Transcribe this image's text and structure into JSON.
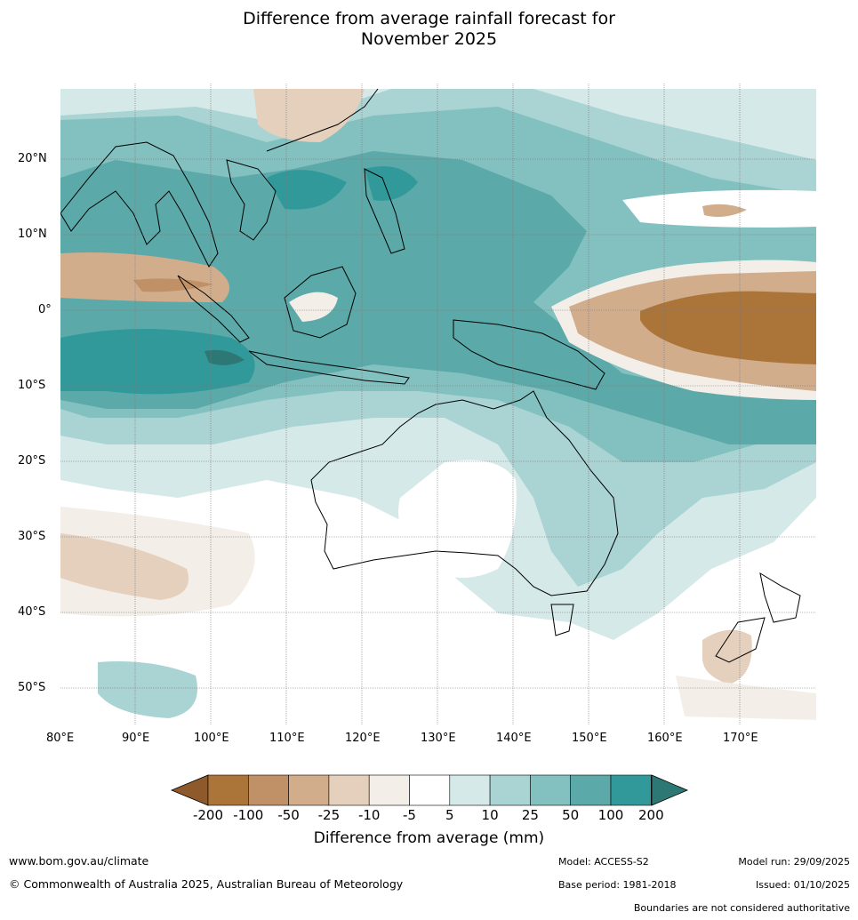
{
  "title": {
    "line1": "Difference from average rainfall forecast for",
    "line2": "November 2025"
  },
  "map": {
    "region": "Indo-Pacific and Australia",
    "lat_labels": [
      "20°N",
      "10°N",
      "0°",
      "10°S",
      "20°S",
      "30°S",
      "40°S",
      "50°S"
    ],
    "lon_labels": [
      "80°E",
      "90°E",
      "100°E",
      "110°E",
      "120°E",
      "130°E",
      "140°E",
      "150°E",
      "160°E",
      "170°E"
    ]
  },
  "colorbar": {
    "ticks": [
      "-200",
      "-100",
      "-50",
      "-25",
      "-10",
      "-5",
      "5",
      "10",
      "25",
      "50",
      "100",
      "200"
    ],
    "colors": [
      "#ab7439",
      "#c09166",
      "#d1ad8c",
      "#e4d0bd",
      "#f3eee8",
      "#ffffff",
      "#d4e9e8",
      "#a9d4d3",
      "#82c1c0",
      "#5ba9a9",
      "#32999a"
    ],
    "low_extend_color": "#8e5a2c",
    "high_extend_color": "#2d7774",
    "label": "Difference from average (mm)"
  },
  "footer": {
    "website": "www.bom.gov.au/climate",
    "copyright": "© Commonwealth of Australia 2025, Australian Bureau of Meteorology",
    "model": "Model: ACCESS-S2",
    "base_period": "Base period: 1981-2018",
    "model_run": "Model run: 29/09/2025",
    "issued": "Issued: 01/10/2025",
    "disclaimer": "Boundaries are not considered authoritative"
  }
}
